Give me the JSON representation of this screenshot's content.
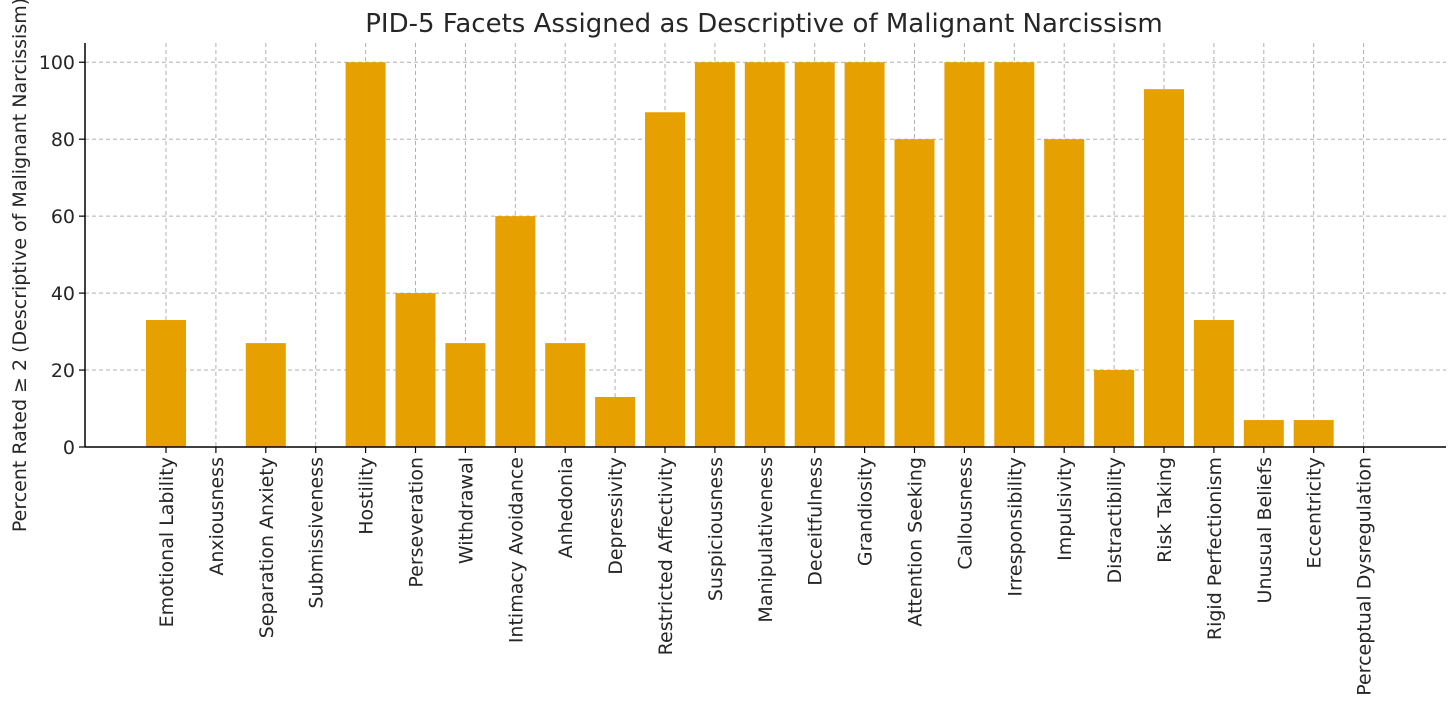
{
  "chart_data": {
    "type": "bar",
    "title": "PID-5 Facets Assigned as Descriptive of Malignant Narcissism",
    "xlabel": "",
    "ylabel": "Percent Rated ≥ 2 (Descriptive of Malignant Narcissism)",
    "ylim": [
      0,
      105
    ],
    "yticks": [
      0,
      20,
      40,
      60,
      80,
      100
    ],
    "grid": true,
    "bar_color": "#E6A000",
    "categories": [
      "Emotional Lability",
      "Anxiousness",
      "Separation Anxiety",
      "Submissiveness",
      "Hostility",
      "Perseveration",
      "Withdrawal",
      "Intimacy Avoidance",
      "Anhedonia",
      "Depressivity",
      "Restricted Affectivity",
      "Suspiciousness",
      "Manipulativeness",
      "Deceitfulness",
      "Grandiosity",
      "Attention Seeking",
      "Callousness",
      "Irresponsibility",
      "Impulsivity",
      "Distractibility",
      "Risk Taking",
      "Rigid Perfectionism",
      "Unusual Beliefs",
      "Eccentricity",
      "Perceptual Dysregulation"
    ],
    "values": [
      33,
      0,
      27,
      0,
      100,
      40,
      27,
      60,
      27,
      13,
      87,
      100,
      100,
      100,
      100,
      80,
      100,
      100,
      80,
      20,
      93,
      33,
      7,
      7,
      0
    ]
  }
}
